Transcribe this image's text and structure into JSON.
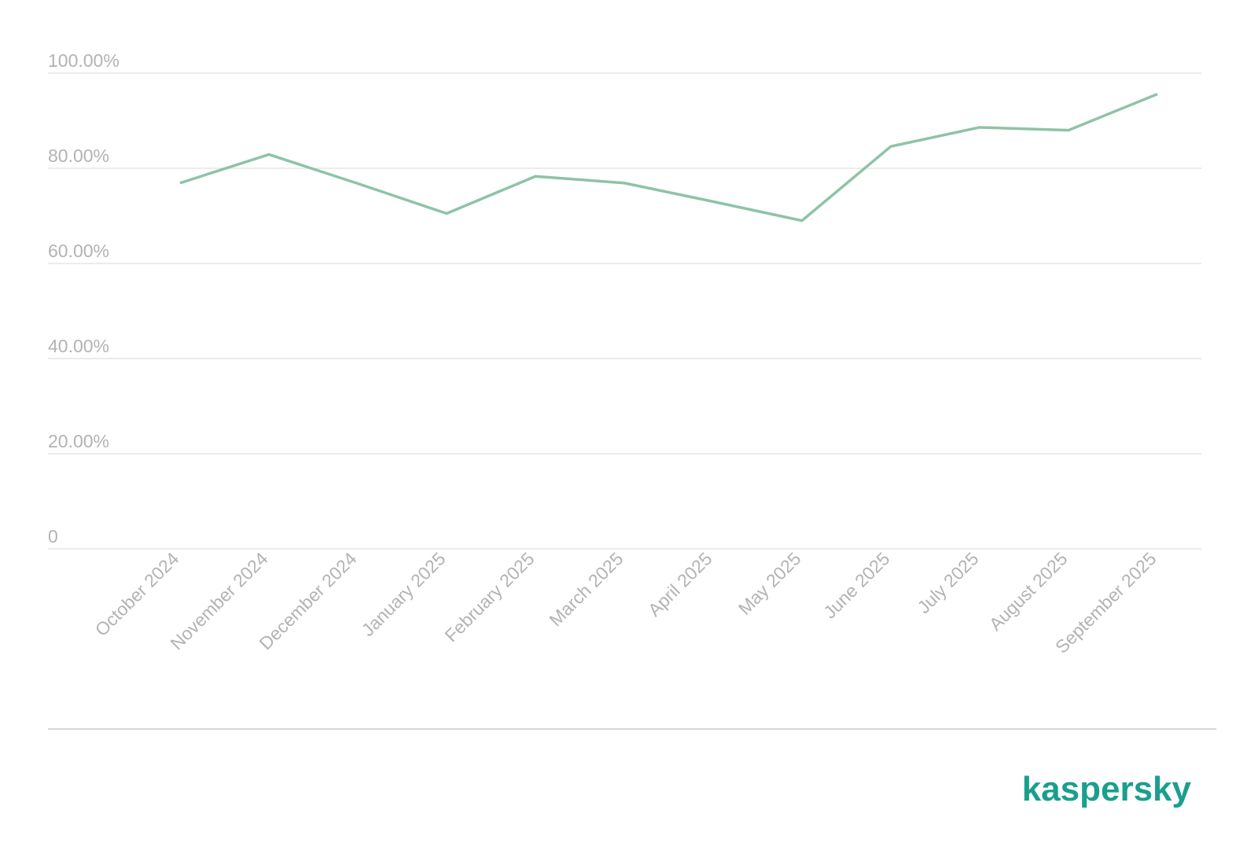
{
  "chart_data": {
    "type": "line",
    "categories": [
      "October 2024",
      "November 2024",
      "December 2024",
      "January 2025",
      "February 2025",
      "March 2025",
      "April 2025",
      "May 2025",
      "June 2025",
      "July 2025",
      "August 2025",
      "September 2025"
    ],
    "series": [
      {
        "color": "#8ec3a7",
        "values": [
          76.9,
          82.9,
          76.8,
          70.5,
          78.3,
          76.9,
          73.0,
          69.0,
          84.6,
          88.6,
          88.0,
          95.6
        ]
      }
    ],
    "ylim": [
      0,
      100
    ],
    "yticks": [
      0,
      {
        "value": 20,
        "label": "20.00%"
      },
      {
        "value": 40,
        "label": "40.00%"
      },
      {
        "value": 60,
        "label": "60.00%"
      },
      {
        "value": 80,
        "label": "80.00%"
      },
      {
        "value": 100,
        "label": "100.00%"
      }
    ],
    "grid": true
  },
  "brand": "kaspersky"
}
